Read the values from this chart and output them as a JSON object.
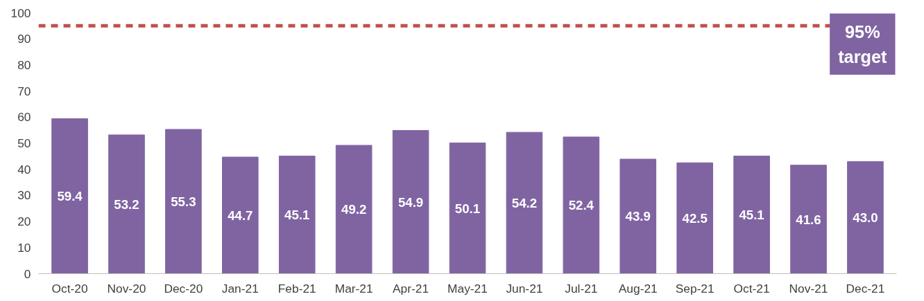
{
  "chart_data": {
    "type": "bar",
    "categories": [
      "Oct-20",
      "Nov-20",
      "Dec-20",
      "Jan-21",
      "Feb-21",
      "Mar-21",
      "Apr-21",
      "May-21",
      "Jun-21",
      "Jul-21",
      "Aug-21",
      "Sep-21",
      "Oct-21",
      "Nov-21",
      "Dec-21"
    ],
    "values": [
      59.4,
      53.2,
      55.3,
      44.7,
      45.1,
      49.2,
      54.9,
      50.1,
      54.2,
      52.4,
      43.9,
      42.5,
      45.1,
      41.6,
      43.0
    ],
    "color": "#8064a2",
    "ylim": [
      0,
      100
    ],
    "yticks": [
      0,
      10,
      20,
      30,
      40,
      50,
      60,
      70,
      80,
      90,
      100
    ],
    "grid": false,
    "value_labels": [
      "59.4",
      "53.2",
      "55.3",
      "44.7",
      "45.1",
      "49.2",
      "54.9",
      "50.1",
      "54.2",
      "52.4",
      "43.9",
      "42.5",
      "45.1",
      "41.6",
      "43.0"
    ],
    "ref_lines": [
      {
        "axis": "y",
        "value": 95,
        "label": "95%\ntarget",
        "color": "#c0504d",
        "line_style": "dashed"
      }
    ]
  }
}
